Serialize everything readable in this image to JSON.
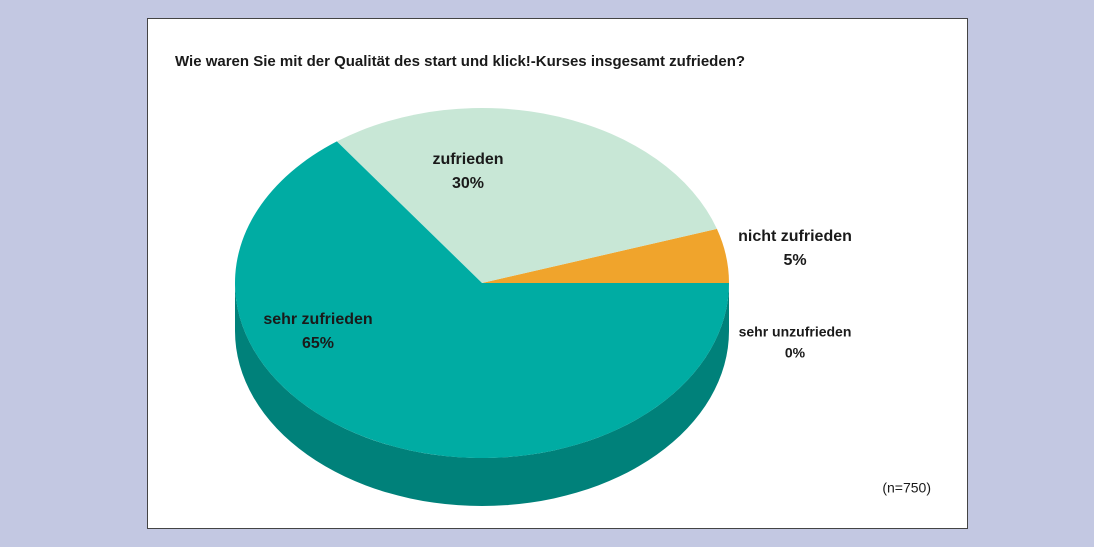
{
  "chart_data": {
    "type": "pie",
    "title": "Wie waren Sie mit der Qualität des start und klick!-Kurses insgesamt zufrieden?",
    "categories": [
      "nicht zufrieden",
      "zufrieden",
      "sehr zufrieden",
      "sehr unzufrieden"
    ],
    "values": [
      5,
      30,
      65,
      0
    ],
    "value_labels": [
      "5%",
      "30%",
      "65%",
      "0%"
    ],
    "colors": [
      "#f0a42c",
      "#c8e7d6",
      "#00aca3",
      "#7f7f7f"
    ],
    "annotation": "(n=750)"
  }
}
